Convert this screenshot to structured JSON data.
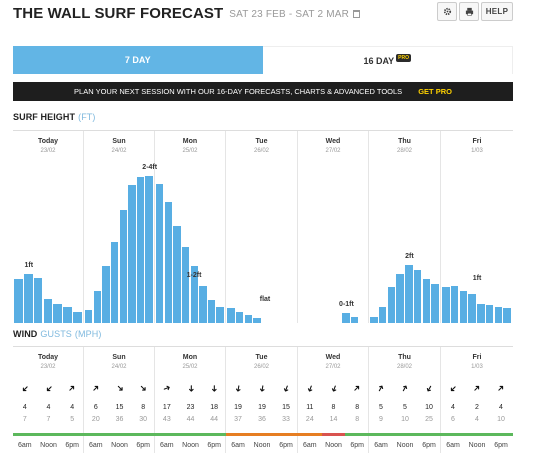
{
  "header": {
    "title": "THE WALL SURF FORECAST",
    "dates": "SAT 23 FEB - SAT 2 MAR"
  },
  "toolbar": {
    "help_label": "HELP",
    "settings_icon": "gear-icon",
    "print_icon": "printer-icon"
  },
  "tabs": [
    {
      "label": "7 DAY",
      "active": true
    },
    {
      "label": "16 DAY",
      "active": false,
      "badge": "PRO"
    }
  ],
  "banner": {
    "text": "PLAN YOUR NEXT SESSION WITH OUR 16-DAY FORECASTS, CHARTS & ADVANCED TOOLS",
    "cta": "GET PRO"
  },
  "surf": {
    "title": "SURF HEIGHT",
    "unit": "(FT)"
  },
  "wind": {
    "title": "WIND",
    "gusts": "GUSTS",
    "unit": "(MPH)"
  },
  "colors": {
    "bar": "#58aee3",
    "tab_active": "#62b5e5",
    "good": "#5cb85c",
    "fair": "#f0ad4e",
    "poor": "#e67e22",
    "bad": "#d9534f"
  },
  "days": [
    {
      "name": "Today",
      "date": "23/02",
      "label": "1ft",
      "surf": [
        0.27,
        0.3,
        0.28,
        0.15,
        0.12,
        0.1,
        0.07
      ]
    },
    {
      "name": "Sun",
      "date": "24/02",
      "label": "2-4ft",
      "surf": [
        0.08,
        0.2,
        0.35,
        0.5,
        0.7,
        0.85,
        0.9,
        0.91
      ]
    },
    {
      "name": "Mon",
      "date": "25/02",
      "label": "1-2ft",
      "surf": [
        0.86,
        0.75,
        0.6,
        0.47,
        0.35,
        0.23,
        0.14,
        0.1
      ]
    },
    {
      "name": "Tue",
      "date": "26/02",
      "label": "flat",
      "surf": [
        0.09,
        0.07,
        0.05,
        0.03,
        0,
        0,
        0,
        0
      ]
    },
    {
      "name": "Wed",
      "date": "27/02",
      "label": "0-1ft",
      "surf": [
        0,
        0,
        0,
        0,
        0,
        0.06,
        0.04,
        0
      ]
    },
    {
      "name": "Thu",
      "date": "28/02",
      "label": "2ft",
      "surf": [
        0.04,
        0.1,
        0.22,
        0.3,
        0.36,
        0.33,
        0.27,
        0.24
      ]
    },
    {
      "name": "Fri",
      "date": "1/03",
      "label": "1ft",
      "surf": [
        0.22,
        0.23,
        0.2,
        0.18,
        0.12,
        0.11,
        0.1,
        0.09
      ]
    }
  ],
  "wind_days": [
    {
      "name": "Today",
      "date": "23/02",
      "speeds": [
        "4",
        "4",
        "4"
      ],
      "gusts": [
        "7",
        "7",
        "5"
      ],
      "dirs": [
        135,
        135,
        -45
      ],
      "strips": [
        "good",
        "good",
        "good"
      ]
    },
    {
      "name": "Sun",
      "date": "24/02",
      "speeds": [
        "6",
        "15",
        "8"
      ],
      "gusts": [
        "20",
        "36",
        "30"
      ],
      "dirs": [
        -45,
        45,
        45
      ],
      "strips": [
        "good",
        "good",
        "good"
      ]
    },
    {
      "name": "Mon",
      "date": "25/02",
      "speeds": [
        "17",
        "23",
        "18"
      ],
      "gusts": [
        "43",
        "44",
        "44"
      ],
      "dirs": [
        -20,
        90,
        90
      ],
      "strips": [
        "good",
        "good",
        "good"
      ]
    },
    {
      "name": "Tue",
      "date": "26/02",
      "speeds": [
        "19",
        "19",
        "15"
      ],
      "gusts": [
        "37",
        "36",
        "33"
      ],
      "dirs": [
        100,
        100,
        110
      ],
      "strips": [
        "poor",
        "poor",
        "poor"
      ]
    },
    {
      "name": "Wed",
      "date": "27/02",
      "speeds": [
        "11",
        "8",
        "8"
      ],
      "gusts": [
        "24",
        "14",
        "8"
      ],
      "dirs": [
        110,
        110,
        -45
      ],
      "strips": [
        "poor",
        "bad",
        "good"
      ]
    },
    {
      "name": "Thu",
      "date": "28/02",
      "speeds": [
        "5",
        "5",
        "10"
      ],
      "gusts": [
        "9",
        "10",
        "25"
      ],
      "dirs": [
        -60,
        -60,
        120
      ],
      "strips": [
        "good",
        "good",
        "good"
      ]
    },
    {
      "name": "Fri",
      "date": "1/03",
      "speeds": [
        "4",
        "2",
        "4"
      ],
      "gusts": [
        "6",
        "4",
        "10"
      ],
      "dirs": [
        135,
        -45,
        -45
      ],
      "strips": [
        "good",
        "good",
        "good"
      ]
    }
  ],
  "time_labels": [
    "6am",
    "Noon",
    "6pm"
  ]
}
